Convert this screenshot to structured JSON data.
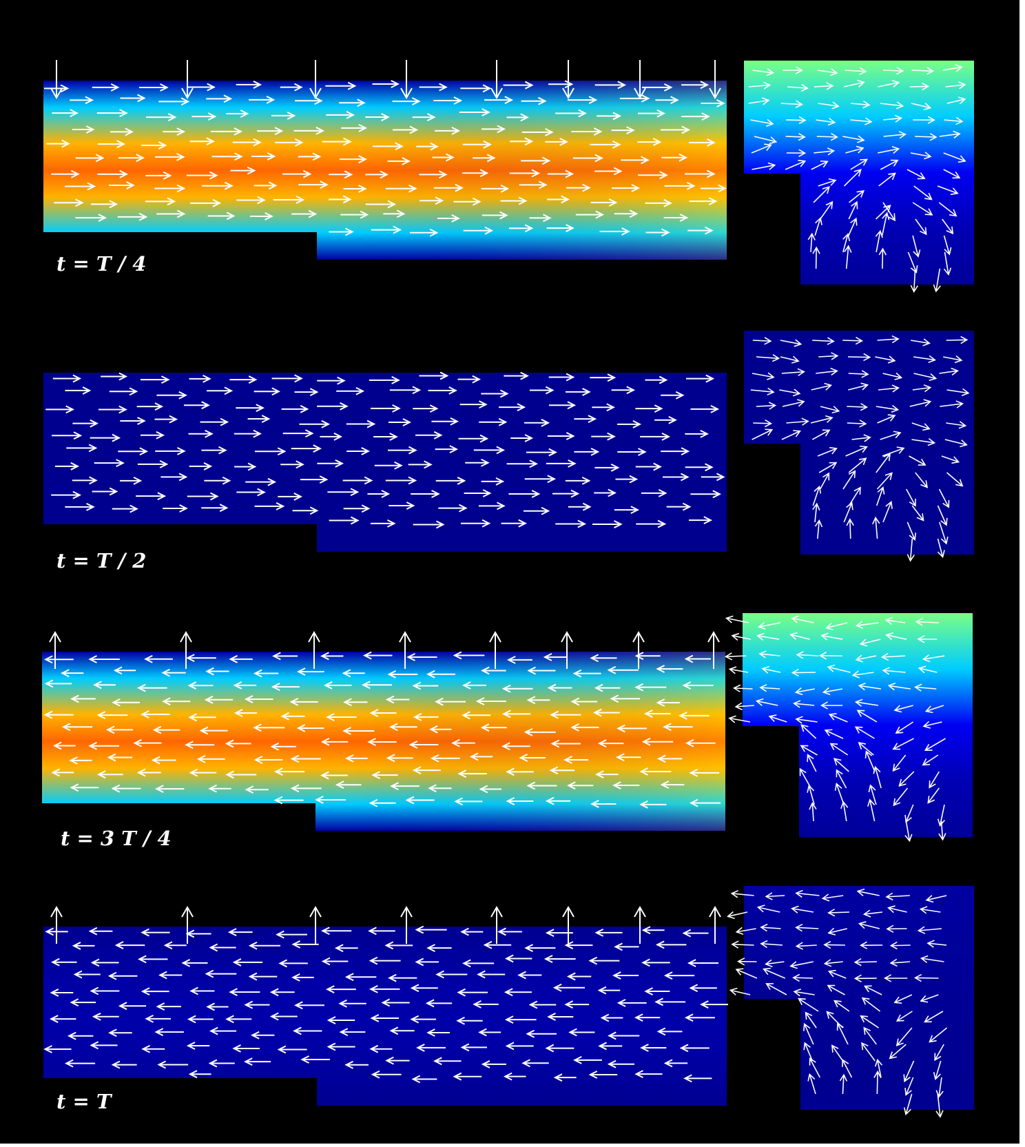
{
  "panels": [
    {
      "label": "t = T / 4",
      "phase": "quarter",
      "intensity": 1.0,
      "direction": "right",
      "wall_arrows": "down"
    },
    {
      "label": "t = T / 2",
      "phase": "half",
      "intensity": 0.0,
      "direction": "right",
      "wall_arrows": "none"
    },
    {
      "label": "t = 3 T / 4",
      "phase": "three-quarter",
      "intensity": 1.0,
      "direction": "left",
      "wall_arrows": "up"
    },
    {
      "label": "t = T",
      "phase": "full",
      "intensity": 0.06,
      "direction": "left",
      "wall_arrows": "up"
    }
  ],
  "colors": {
    "background": "#000000",
    "arrows": "#ffffff",
    "colormap": [
      "#00008f",
      "#0000ff",
      "#00ffff",
      "#ffff00",
      "#ff4000"
    ]
  }
}
